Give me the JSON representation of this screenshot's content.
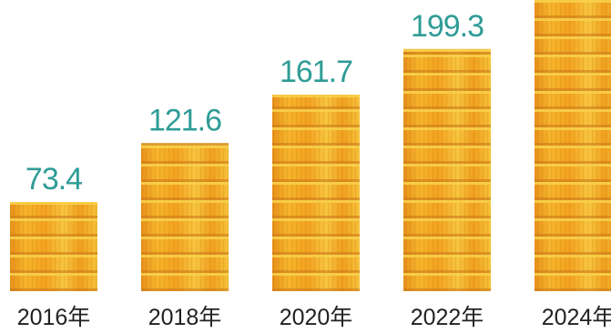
{
  "chart_data": {
    "type": "bar",
    "title": "",
    "xlabel": "",
    "ylabel": "",
    "categories": [
      "2016年",
      "2018年",
      "2020年",
      "2022年",
      "2024年"
    ],
    "values": [
      73.4,
      121.6,
      161.7,
      199.3,
      null
    ],
    "value_labels": [
      "73.4",
      "121.6",
      "161.7",
      "199.3",
      ""
    ],
    "ylim": [
      0,
      230
    ],
    "grid": false,
    "legend": "none",
    "bar_style": "stacked gold coins",
    "colors": {
      "coin_base": "#f2a81e",
      "coin_light": "#f8cf4a",
      "coin_dark": "#c9771a",
      "value_text": "#2f9c96",
      "year_text": "#222222"
    }
  }
}
